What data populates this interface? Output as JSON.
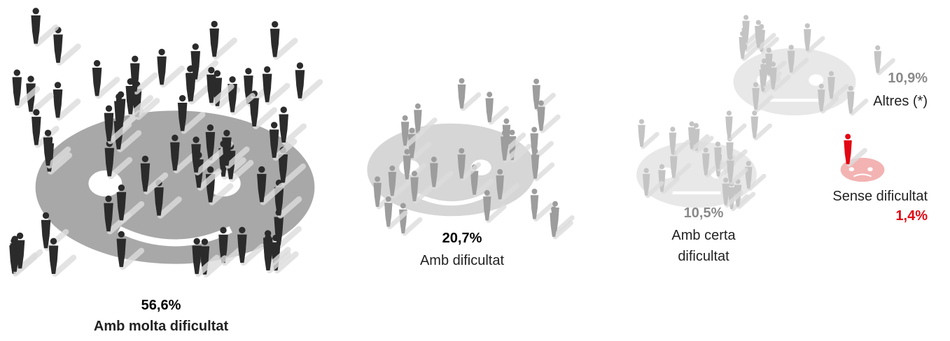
{
  "chart_data": {
    "type": "pictogram",
    "categories": [
      "Amb molta dificultat",
      "Amb dificultat",
      "Amb certa dificultat",
      "Altres (*)",
      "Sense dificultat"
    ],
    "values": [
      56.6,
      20.7,
      10.5,
      10.9,
      1.4
    ],
    "value_labels": [
      "56,6%",
      "20,7%",
      "10,5%",
      "10,9%",
      "1,4%"
    ],
    "colors": [
      "#2b2b2b",
      "#9d9d9d",
      "#c4c4c4",
      "#c4c4c4",
      "#e30613"
    ],
    "face_colors": [
      "#a8a8a8",
      "#d6d6d6",
      "#e8e8e8",
      "#e8e8e8",
      "#f3b3b3"
    ],
    "label_colors": [
      "#000000",
      "#000000",
      "#8a8a8a",
      "#8a8a8a",
      "#e30613"
    ]
  }
}
